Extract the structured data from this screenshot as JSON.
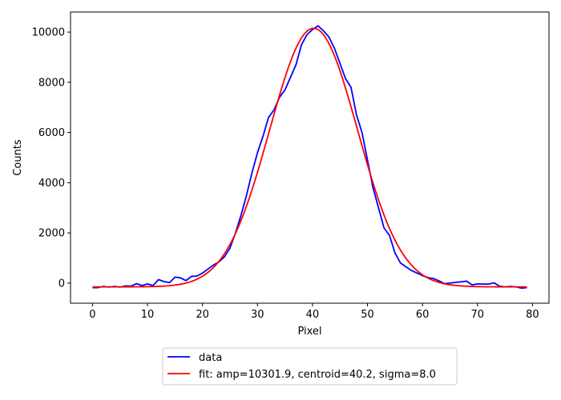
{
  "chart_data": {
    "type": "line",
    "title": "",
    "xlabel": "Pixel",
    "ylabel": "Counts",
    "xlim": [
      -4,
      83
    ],
    "ylim": [
      -800,
      10800
    ],
    "xticks": [
      0,
      10,
      20,
      30,
      40,
      50,
      60,
      70,
      80
    ],
    "yticks": [
      0,
      2000,
      4000,
      6000,
      8000,
      10000
    ],
    "grid": false,
    "legend_position": "below plot, centered",
    "series": [
      {
        "name": "data",
        "color": "#0000ff",
        "x": [
          0,
          1,
          2,
          3,
          4,
          5,
          6,
          7,
          8,
          9,
          10,
          11,
          12,
          13,
          14,
          15,
          16,
          17,
          18,
          19,
          20,
          21,
          22,
          23,
          24,
          25,
          26,
          27,
          28,
          29,
          30,
          31,
          32,
          33,
          34,
          35,
          36,
          37,
          38,
          39,
          40,
          41,
          42,
          43,
          44,
          45,
          46,
          47,
          48,
          49,
          50,
          51,
          52,
          53,
          54,
          55,
          56,
          57,
          58,
          59,
          60,
          61,
          62,
          63,
          64,
          65,
          66,
          67,
          68,
          69,
          70,
          71,
          72,
          73,
          74,
          75,
          76,
          77,
          78,
          79
        ],
        "y": [
          -180,
          -180,
          -130,
          -160,
          -130,
          -160,
          -110,
          -120,
          -20,
          -100,
          -30,
          -100,
          140,
          60,
          20,
          240,
          210,
          100,
          270,
          280,
          400,
          560,
          720,
          850,
          1050,
          1400,
          2000,
          2700,
          3500,
          4400,
          5200,
          5850,
          6600,
          6900,
          7400,
          7700,
          8200,
          8700,
          9500,
          9900,
          10100,
          10250,
          10050,
          9800,
          9350,
          8750,
          8150,
          7800,
          6700,
          6000,
          4900,
          3800,
          3000,
          2200,
          1900,
          1200,
          800,
          650,
          500,
          400,
          300,
          220,
          180,
          90,
          -20,
          0,
          30,
          50,
          80,
          -70,
          -30,
          -40,
          -40,
          10,
          -120,
          -150,
          -130,
          -150,
          -200,
          -180
        ]
      },
      {
        "name": "fit: amp=10301.9, centroid=40.2, sigma=8.0",
        "color": "#ff0000",
        "model": "gaussian",
        "amp": 10301.9,
        "centroid": 40.2,
        "sigma": 8.0,
        "offset": -150,
        "x_range": [
          0,
          79
        ]
      }
    ]
  }
}
